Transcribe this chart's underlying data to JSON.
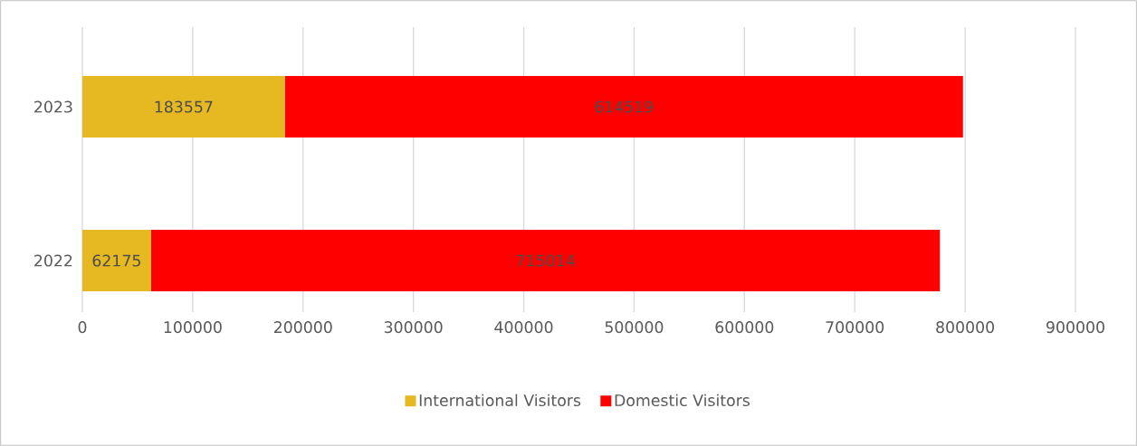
{
  "chart_data": {
    "type": "bar",
    "orientation": "horizontal",
    "stacked": true,
    "categories": [
      "2023",
      "2022"
    ],
    "series": [
      {
        "name": "International Visitors",
        "color": "#e6b822",
        "values": [
          183557,
          62175
        ]
      },
      {
        "name": "Domestic Visitors",
        "color": "#ff0000",
        "values": [
          614519,
          715014
        ]
      }
    ],
    "xlim": [
      0,
      900000
    ],
    "xticks": [
      0,
      100000,
      200000,
      300000,
      400000,
      500000,
      600000,
      700000,
      800000,
      900000
    ],
    "grid": "x",
    "legend": "bottom",
    "data_labels": true
  }
}
